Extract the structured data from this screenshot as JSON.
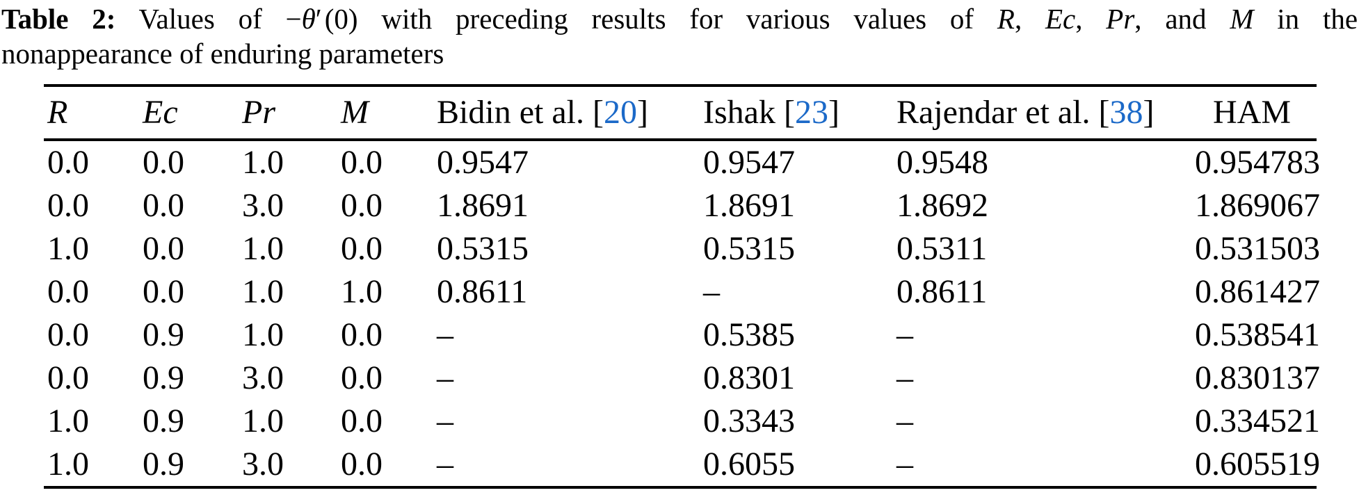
{
  "caption": {
    "label": "Table 2:",
    "intro": "Values of",
    "math": {
      "minus": "−",
      "theta": "θ",
      "prime": "′",
      "arg": "(0)"
    },
    "middle": "with preceding results for various values of",
    "vars": {
      "r": "R",
      "ec": "Ec",
      "pr": "Pr",
      "m": "M"
    },
    "sep_comma": ",",
    "sep_and": ", and",
    "tail": "in the",
    "line2": "nonappearance of enduring parameters"
  },
  "table": {
    "brackets": {
      "open": "[",
      "close": "]"
    },
    "header": {
      "r": "R",
      "ec": "Ec",
      "pr": "Pr",
      "m": "M",
      "bidin": {
        "name": "Bidin et al.",
        "cite": "20"
      },
      "ishak": {
        "name": "Ishak",
        "cite": "23"
      },
      "rajendar": {
        "name": "Rajendar et al.",
        "cite": "38"
      },
      "ham": "HAM"
    },
    "rows": [
      [
        "0.0",
        "0.0",
        "1.0",
        "0.0",
        "0.9547",
        "0.9547",
        "0.9548",
        "0.954783"
      ],
      [
        "0.0",
        "0.0",
        "3.0",
        "0.0",
        "1.8691",
        "1.8691",
        "1.8692",
        "1.869067"
      ],
      [
        "1.0",
        "0.0",
        "1.0",
        "0.0",
        "0.5315",
        "0.5315",
        "0.5311",
        "0.531503"
      ],
      [
        "0.0",
        "0.0",
        "1.0",
        "1.0",
        "0.8611",
        "–",
        "0.8611",
        "0.861427"
      ],
      [
        "0.0",
        "0.9",
        "1.0",
        "0.0",
        "–",
        "0.5385",
        "–",
        "0.538541"
      ],
      [
        "0.0",
        "0.9",
        "3.0",
        "0.0",
        "–",
        "0.8301",
        "–",
        "0.830137"
      ],
      [
        "1.0",
        "0.9",
        "1.0",
        "0.0",
        "–",
        "0.3343",
        "–",
        "0.334521"
      ],
      [
        "1.0",
        "0.9",
        "3.0",
        "0.0",
        "–",
        "0.6055",
        "–",
        "0.605519"
      ]
    ]
  },
  "colors": {
    "citation_blue": "#1b69c8",
    "text": "#000000",
    "background": "#ffffff"
  }
}
